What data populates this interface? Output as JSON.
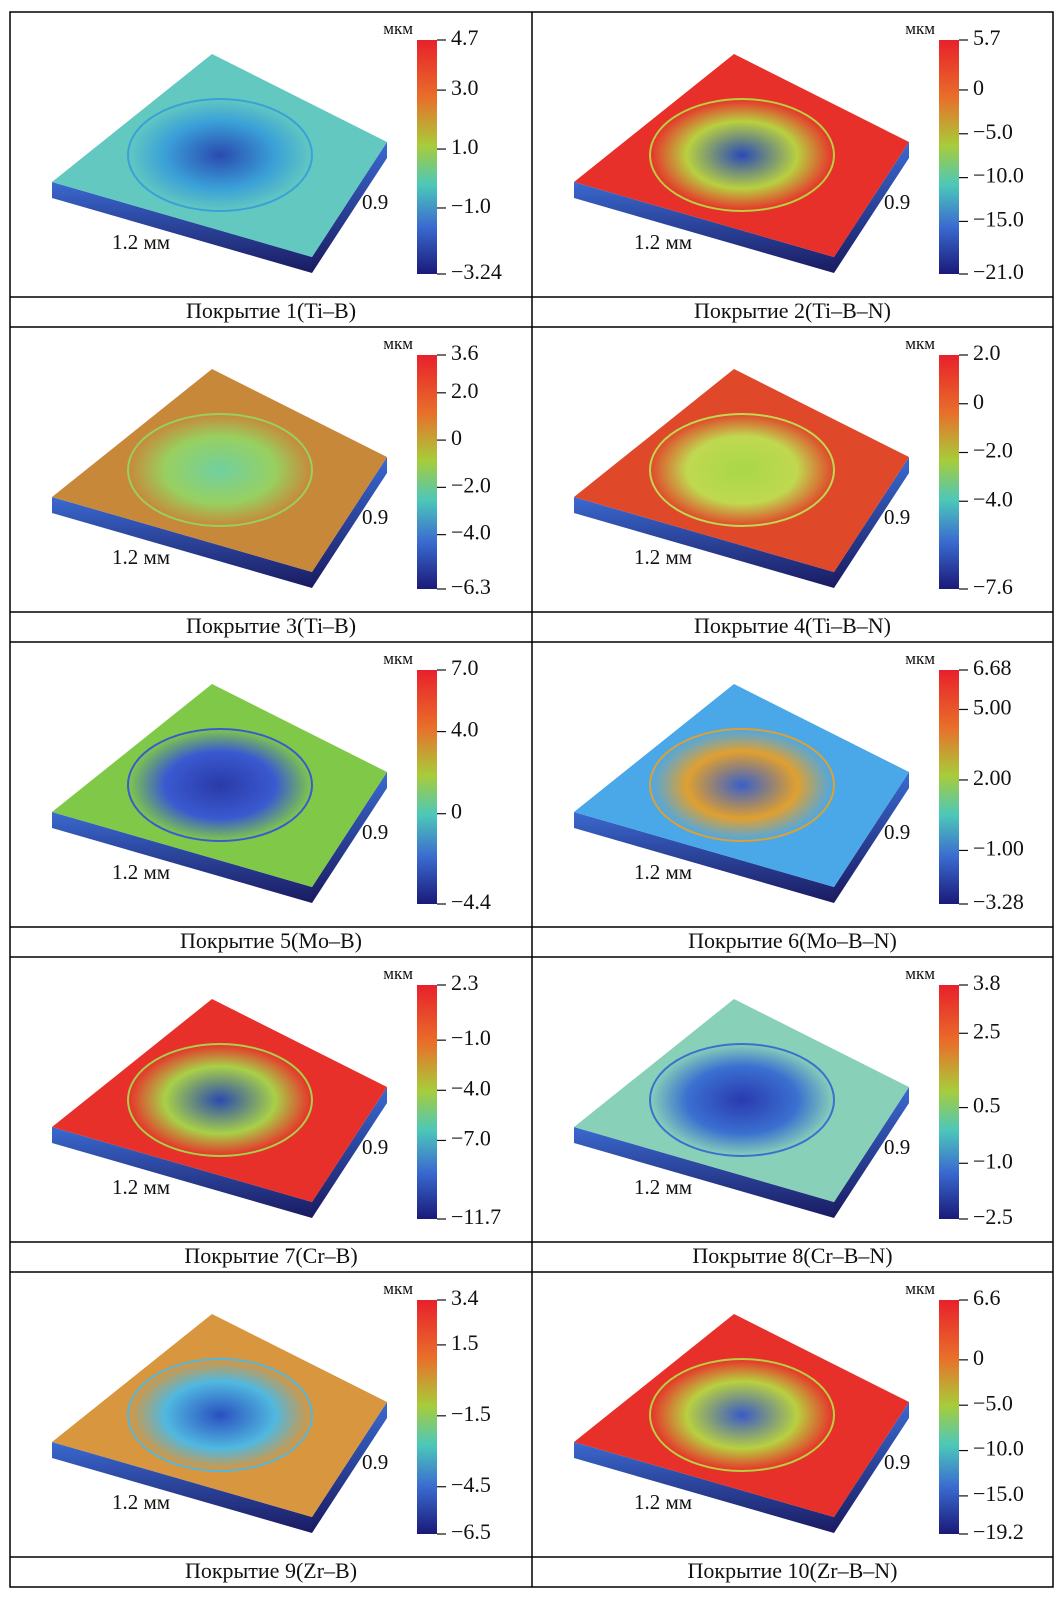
{
  "panels": [
    {
      "caption": "Покрытие 1(Ti–B)",
      "unit": "мкм",
      "x_size": "1.2 мм",
      "y_size": "0.9",
      "colorbar_ticks": [
        "4.7",
        "3.0",
        "1.0",
        "−1.0",
        "−3.24"
      ]
    },
    {
      "caption": "Покрытие 2(Ti–B–N)",
      "unit": "мкм",
      "x_size": "1.2 мм",
      "y_size": "0.9",
      "colorbar_ticks": [
        "5.7",
        "0",
        "−5.0",
        "−10.0",
        "−15.0",
        "−21.0"
      ]
    },
    {
      "caption": "Покрытие 3(Ti–B)",
      "unit": "мкм",
      "x_size": "1.2 мм",
      "y_size": "0.9",
      "colorbar_ticks": [
        "3.6",
        "2.0",
        "0",
        "−2.0",
        "−4.0",
        "−6.3"
      ]
    },
    {
      "caption": "Покрытие 4(Ti–B–N)",
      "unit": "мкм",
      "x_size": "1.2 мм",
      "y_size": "0.9",
      "colorbar_ticks": [
        "2.0",
        "0",
        "−2.0",
        "−4.0",
        "−7.6"
      ]
    },
    {
      "caption": "Покрытие 5(Mo–B)",
      "unit": "мкм",
      "x_size": "1.2 мм",
      "y_size": "0.9",
      "colorbar_ticks": [
        "7.0",
        "4.0",
        "0",
        "−4.4"
      ]
    },
    {
      "caption": "Покрытие 6(Mo–B–N)",
      "unit": "мкм",
      "x_size": "1.2 мм",
      "y_size": "0.9",
      "colorbar_ticks": [
        "6.68",
        "5.00",
        "2.00",
        "−1.00",
        "−3.28"
      ]
    },
    {
      "caption": "Покрытие 7(Cr–B)",
      "unit": "мкм",
      "x_size": "1.2 мм",
      "y_size": "0.9",
      "colorbar_ticks": [
        "2.3",
        "−1.0",
        "−4.0",
        "−7.0",
        "−11.7"
      ]
    },
    {
      "caption": "Покрытие 8(Cr–B–N)",
      "unit": "мкм",
      "x_size": "1.2 мм",
      "y_size": "0.9",
      "colorbar_ticks": [
        "3.8",
        "2.5",
        "0.5",
        "−1.0",
        "−2.5"
      ]
    },
    {
      "caption": "Покрытие 9(Zr–B)",
      "unit": "мкм",
      "x_size": "1.2 мм",
      "y_size": "0.9",
      "colorbar_ticks": [
        "3.4",
        "1.5",
        "−1.5",
        "−4.5",
        "−6.5"
      ]
    },
    {
      "caption": "Покрытие 10(Zr–B–N)",
      "unit": "мкм",
      "x_size": "1.2 мм",
      "y_size": "0.9",
      "colorbar_ticks": [
        "6.6",
        "0",
        "−5.0",
        "−10.0",
        "−15.0",
        "−19.2"
      ]
    }
  ]
}
